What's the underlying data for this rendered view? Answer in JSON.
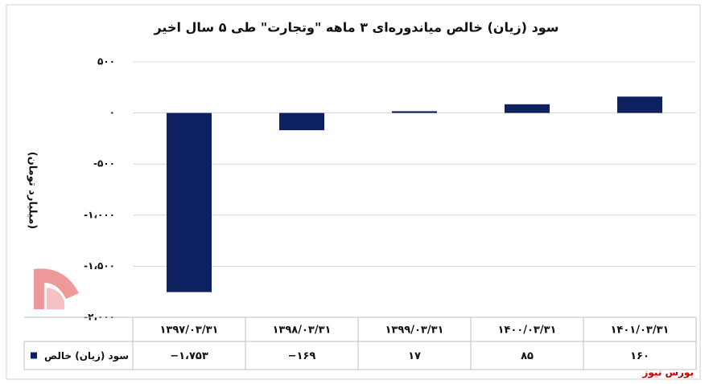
{
  "chart_data": {
    "type": "bar",
    "title": "سود (زیان) خالص میاندوره‌ای ۳ ماهه \"وتجارت\" طی ۵ سال اخیر",
    "y_label": "(میلیارد تومان)",
    "categories": [
      "۱۳۹۷/۰۳/۳۱",
      "۱۳۹۸/۰۳/۳۱",
      "۱۳۹۹/۰۳/۳۱",
      "۱۴۰۰/۰۳/۳۱",
      "۱۴۰۱/۰۳/۳۱"
    ],
    "series": [
      {
        "name": "سود (زیان) خالص",
        "color": "#0d2160",
        "values": [
          -1753,
          -169,
          17,
          85,
          160
        ],
        "value_labels": [
          "−۱،۷۵۳",
          "−۱۶۹",
          "۱۷",
          "۸۵",
          "۱۶۰"
        ]
      }
    ],
    "ylim": [
      -2000,
      500
    ],
    "yticks": [
      {
        "value": 500,
        "label": "۵۰۰"
      },
      {
        "value": 0,
        "label": "۰"
      },
      {
        "value": -500,
        "label": "-۵۰۰"
      },
      {
        "value": -1000,
        "label": "-۱،۰۰۰"
      },
      {
        "value": -1500,
        "label": "-۱،۵۰۰"
      },
      {
        "value": -2000,
        "label": "-۲،۰۰۰"
      }
    ],
    "grid": true,
    "source": "بورس نیوز"
  }
}
